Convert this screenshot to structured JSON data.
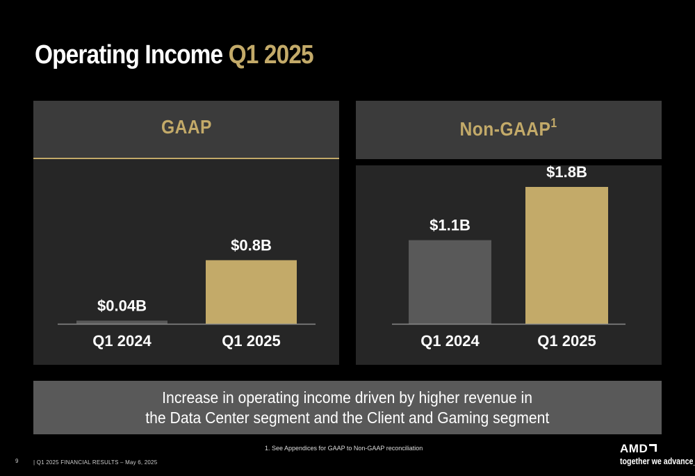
{
  "title": {
    "main": "Operating Income",
    "accent": "Q1 2025"
  },
  "colors": {
    "accent": "#c3aa69",
    "prior_bar": "#595959",
    "current_bar": "#c3aa69",
    "panel": "#262626",
    "header": "#3b3b3b"
  },
  "chart_data": [
    {
      "type": "bar",
      "title": "GAAP",
      "categories": [
        "Q1 2024",
        "Q1 2025"
      ],
      "values": [
        0.04,
        0.8
      ],
      "data_labels": [
        "$0.04B",
        "$0.8B"
      ],
      "unit": "$B",
      "ylim": [
        0,
        1.8
      ],
      "grid": false
    },
    {
      "type": "bar",
      "title": "Non-GAAP",
      "title_footnote": "1",
      "categories": [
        "Q1 2024",
        "Q1 2025"
      ],
      "values": [
        1.1,
        1.8
      ],
      "data_labels": [
        "$1.1B",
        "$1.8B"
      ],
      "unit": "$B",
      "ylim": [
        0,
        1.8
      ],
      "grid": false
    }
  ],
  "summary": {
    "line1": "Increase in operating income driven by higher revenue in",
    "line2": "the Data Center segment and the Client and Gaming segment"
  },
  "footnote": "1. See Appendices for GAAP to Non-GAAP reconciliation",
  "footer": {
    "page": "9",
    "text": "|  Q1 2025 FINANCIAL RESULTS – May 6, 2025"
  },
  "brand": {
    "logo": "AMD",
    "tagline": "together we advance_"
  }
}
